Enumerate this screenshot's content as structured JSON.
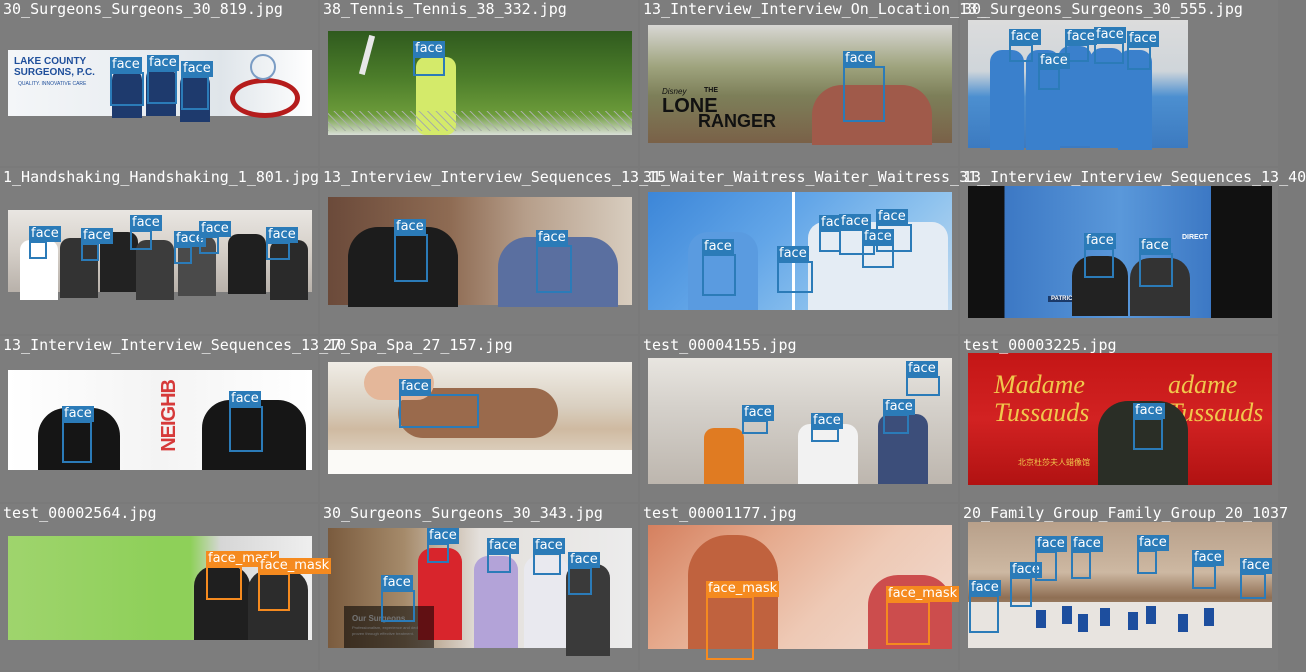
{
  "colors": {
    "face": "#2b7bb8",
    "face_mask": "#f58a1f",
    "background": "#7d7d7d",
    "title": "#ffffff"
  },
  "tiles": [
    {
      "title": "30_Surgeons_Surgeons_30_819.jpg",
      "detections": [
        "face",
        "face",
        "face"
      ],
      "photo_text": {
        "logo": "LAKE COUNTY\nSURGEONS, P.C.",
        "tagline": "QUALITY. INNOVATIVE CARE"
      }
    },
    {
      "title": "38_Tennis_Tennis_38_332.jpg",
      "detections": [
        "face"
      ]
    },
    {
      "title": "13_Interview_Interview_On_Location_13_",
      "detections": [
        "face"
      ],
      "photo_text": {
        "brand": "Disney",
        "movie_the": "THE",
        "movie_lone": "LONE",
        "movie_ranger": "RANGER"
      }
    },
    {
      "title": "30_Surgeons_Surgeons_30_555.jpg",
      "detections": [
        "face",
        "face",
        "face",
        "face",
        "face"
      ]
    },
    {
      "title": "1_Handshaking_Handshaking_1_801.jpg",
      "detections": [
        "face",
        "face",
        "face",
        "face",
        "face",
        "face"
      ]
    },
    {
      "title": "13_Interview_Interview_Sequences_13_15",
      "detections": [
        "face",
        "face"
      ]
    },
    {
      "title": "31_Waiter_Waitress_Waiter_Waitress_31_",
      "detections": [
        "face",
        "face",
        "face",
        "face",
        "face",
        "face"
      ]
    },
    {
      "title": "13_Interview_Interview_Sequences_13_40",
      "detections": [
        "face",
        "face"
      ],
      "photo_text": {
        "live": "DIRECT",
        "lower": "PATRICK BRUEL"
      }
    },
    {
      "title": "13_Interview_Interview_Sequences_13_10",
      "detections": [
        "face",
        "face"
      ],
      "photo_text": {
        "sign": "NEIGHB"
      }
    },
    {
      "title": "27_Spa_Spa_27_157.jpg",
      "detections": [
        "face"
      ]
    },
    {
      "title": "test_00004155.jpg",
      "detections": [
        "face",
        "face",
        "face",
        "face"
      ]
    },
    {
      "title": "test_00003225.jpg",
      "detections": [
        "face"
      ],
      "photo_text": {
        "wall_left": "Madame\nTussauds",
        "wall_right": "adame\nTussauds",
        "sub": "北京杜莎夫人蜡像馆"
      }
    },
    {
      "title": "test_00002564.jpg",
      "detections": [
        "face_mask",
        "face_mask"
      ]
    },
    {
      "title": "30_Surgeons_Surgeons_30_343.jpg",
      "detections": [
        "face",
        "face",
        "face",
        "face",
        "face"
      ],
      "photo_text": {
        "heading": "Our Surgeons",
        "body": "Professionalism, experience and dedication\nproven through effective treatment."
      }
    },
    {
      "title": "test_00001177.jpg",
      "detections": [
        "face_mask",
        "face_mask"
      ]
    },
    {
      "title": "20_Family_Group_Family_Group_20_1037",
      "detections": [
        "face",
        "face",
        "face",
        "face",
        "face",
        "face",
        "face"
      ]
    }
  ]
}
